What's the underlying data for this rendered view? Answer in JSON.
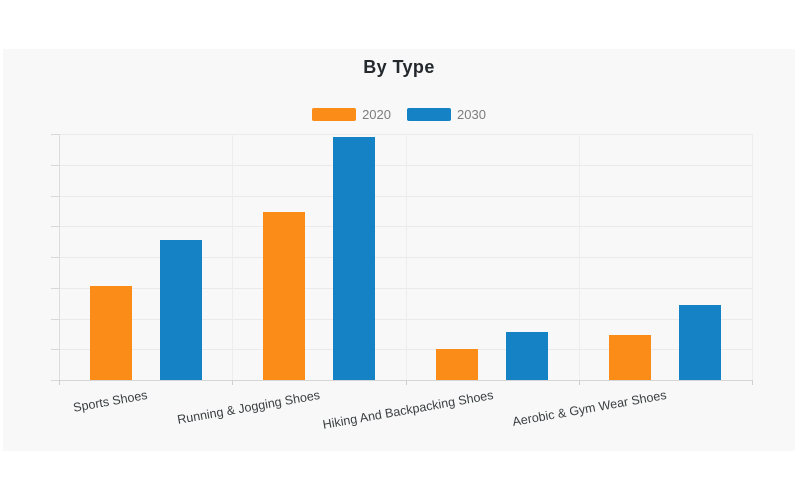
{
  "page": {
    "background": "#ffffff",
    "panel_background": "#f8f8f8"
  },
  "chart_data": {
    "type": "bar",
    "title": "By Type",
    "categories": [
      "Sports Shoes",
      "Running & Jogging Shoes",
      "Hiking And Backpacking Shoes",
      "Aerobic & Gym Wear Shoes"
    ],
    "series": [
      {
        "name": "2020",
        "color": "#FB8C17",
        "values": [
          3.05,
          5.45,
          1.0,
          1.45
        ]
      },
      {
        "name": "2030",
        "color": "#1582C5",
        "values": [
          4.55,
          7.9,
          1.55,
          2.45
        ]
      }
    ],
    "xlabel": "",
    "ylabel": "",
    "ylim": [
      0,
      8
    ],
    "y_gridline_step": 1,
    "grid": true,
    "y_axis_tick_labels_visible": false,
    "legend_position": "top",
    "x_label_rotation_deg": -10
  }
}
